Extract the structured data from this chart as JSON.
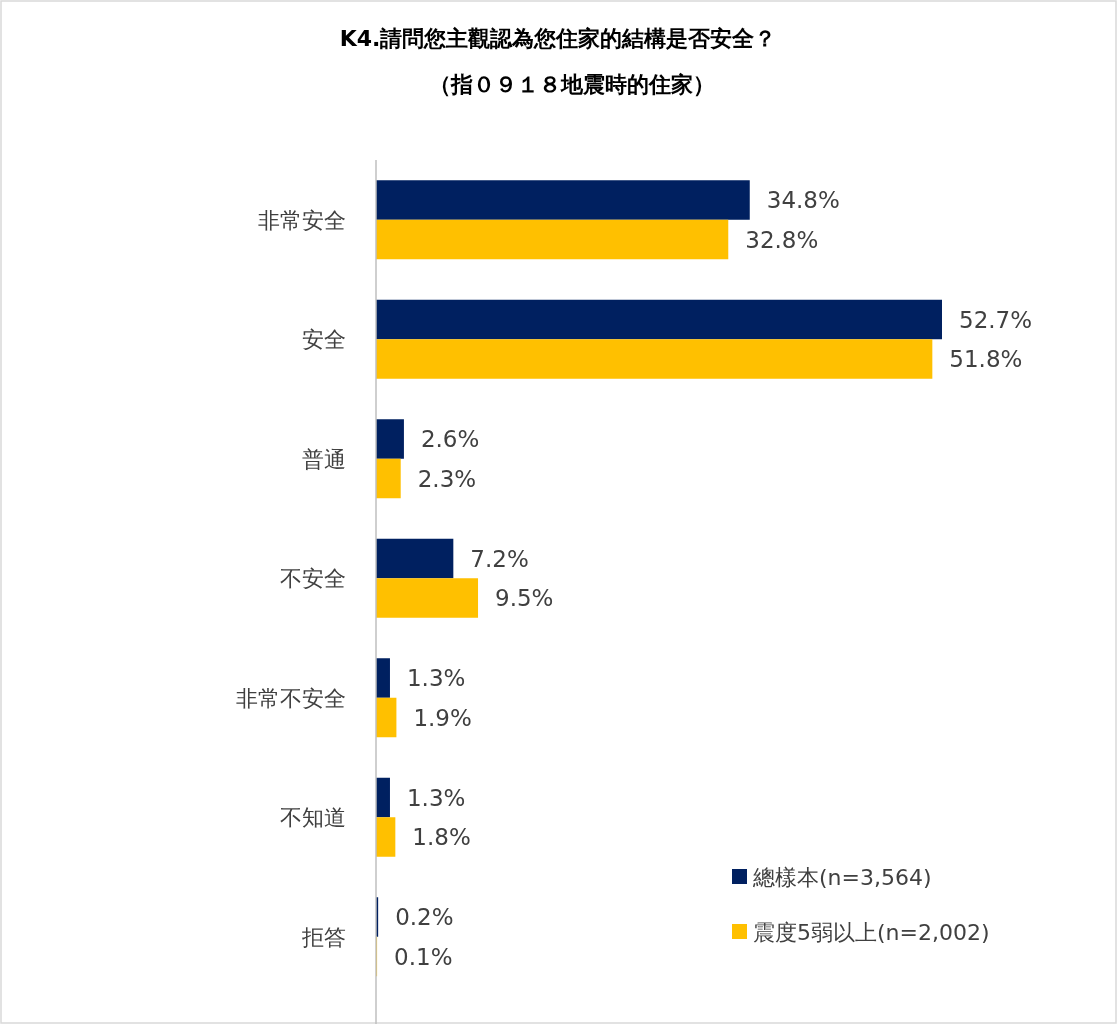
{
  "chart_data": {
    "type": "bar",
    "orientation": "horizontal",
    "title": "K4.請問您主觀認為您住家的結構是否安全？",
    "subtitle": "（指０９１８地震時的住家）",
    "categories": [
      "非常安全",
      "安全",
      "普通",
      "不安全",
      "非常不安全",
      "不知道",
      "拒答"
    ],
    "series": [
      {
        "name": "總樣本(n=3,564)",
        "color": "#002060",
        "values": [
          34.8,
          52.7,
          2.6,
          7.2,
          1.3,
          1.3,
          0.2
        ],
        "value_labels": [
          "34.8%",
          "52.7%",
          "2.6%",
          "7.2%",
          "1.3%",
          "1.3%",
          "0.2%"
        ]
      },
      {
        "name": "震度5弱以上(n=2,002)",
        "color": "#ffc000",
        "values": [
          32.8,
          51.8,
          2.3,
          9.5,
          1.9,
          1.8,
          0.1
        ],
        "value_labels": [
          "32.8%",
          "51.8%",
          "2.3%",
          "9.5%",
          "1.9%",
          "1.8%",
          "0.1%"
        ]
      }
    ],
    "legend": "bottom right"
  }
}
